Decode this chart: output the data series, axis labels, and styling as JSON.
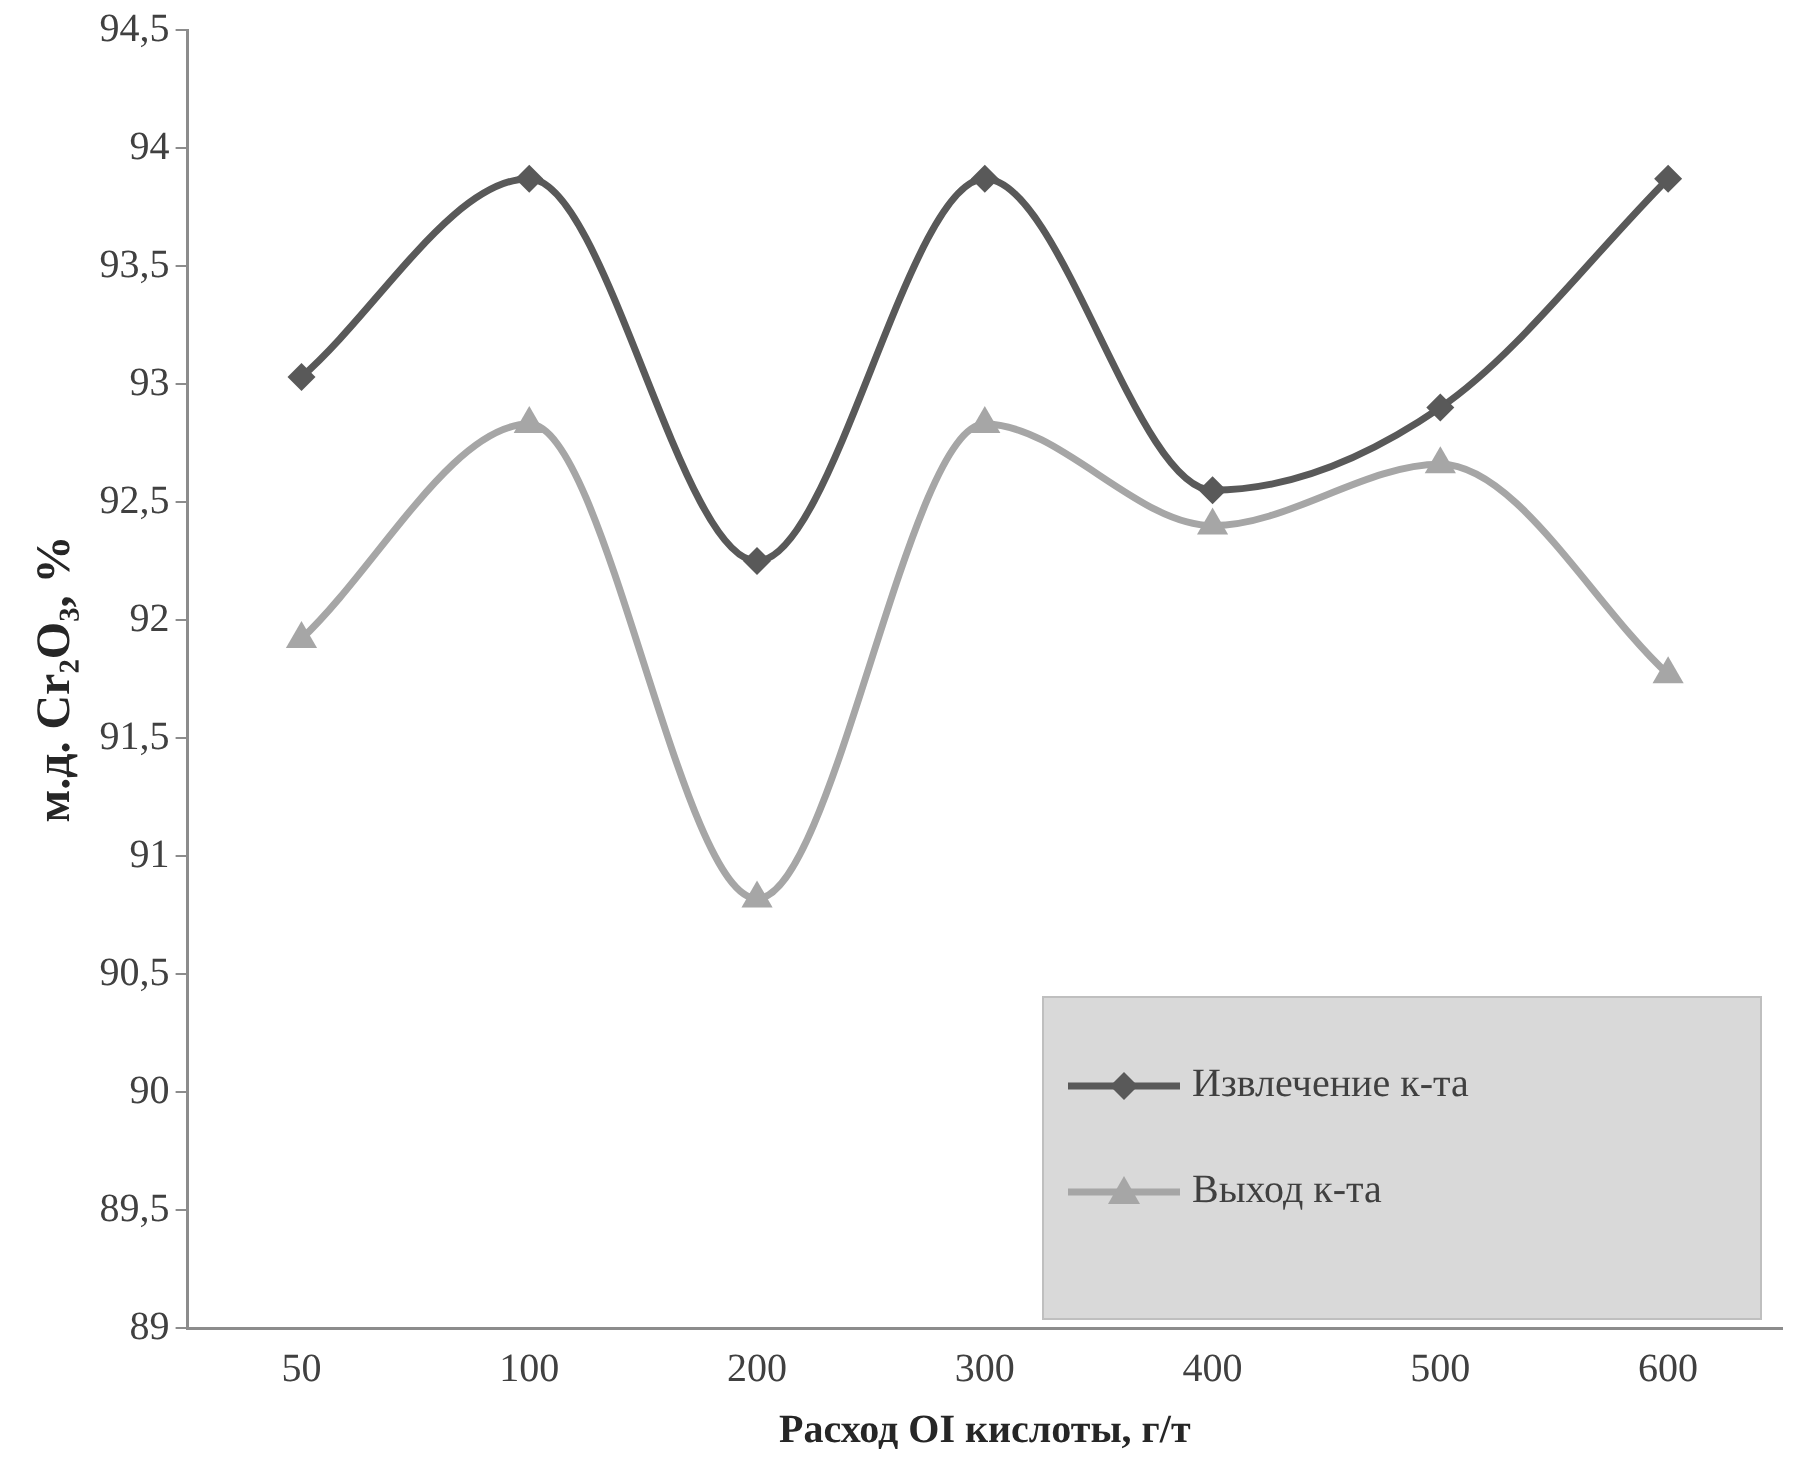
{
  "chart_data": {
    "type": "line",
    "xlabel": "Расход OI кислоты, г/т",
    "ylabel": "м.д. Cr₂O₃, %",
    "categories": [
      "50",
      "100",
      "200",
      "300",
      "400",
      "500",
      "600"
    ],
    "series": [
      {
        "name": "Извлечение к-та",
        "color": "#595959",
        "marker": "diamond",
        "values": [
          93.03,
          93.87,
          92.25,
          93.87,
          92.55,
          92.9,
          93.87
        ]
      },
      {
        "name": "Выход к-та",
        "color": "#a6a6a6",
        "marker": "triangle",
        "values": [
          91.92,
          92.83,
          90.82,
          92.83,
          92.4,
          92.66,
          91.77
        ]
      }
    ],
    "ylim": [
      89,
      94.5
    ],
    "yticks": [
      89,
      {
        "value": 89.5,
        "label": "89,5"
      },
      90,
      {
        "value": 90.5,
        "label": "90,5"
      },
      91,
      {
        "value": 91.5,
        "label": "91,5"
      },
      92,
      {
        "value": 92.5,
        "label": "92,5"
      },
      93,
      {
        "value": 93.5,
        "label": "93,5"
      },
      94,
      {
        "value": 94.5,
        "label": "94,5"
      }
    ],
    "grid": false,
    "legend": "bottom right"
  }
}
